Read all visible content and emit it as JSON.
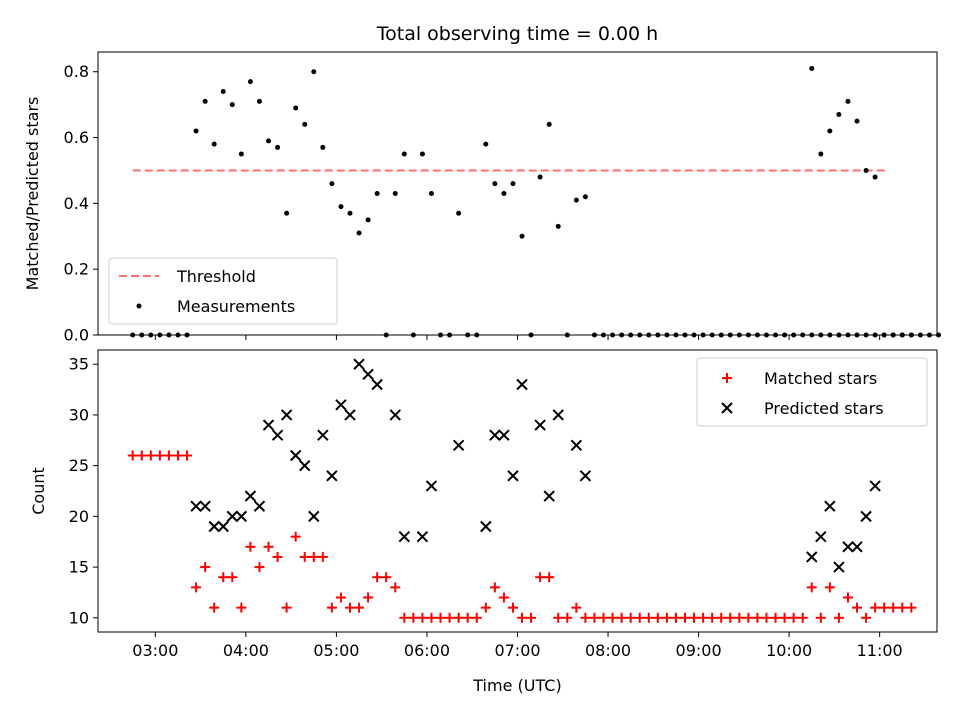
{
  "chart_data": [
    {
      "type": "scatter",
      "title": "Total observing time = 0.00 h",
      "xlabel": "",
      "ylabel": "Matched/Predicted stars",
      "xlim": [
        "02:22",
        "11:38"
      ],
      "ylim": [
        0,
        0.86
      ],
      "yticks": [
        "0.0",
        "0.2",
        "0.4",
        "0.6",
        "0.8"
      ],
      "ytick_values": [
        0,
        0.2,
        0.4,
        0.6,
        0.8
      ],
      "legend": "lower-left",
      "series": [
        {
          "name": "Threshold",
          "style": "dashed-line",
          "color": "#ff7070",
          "x": [
            "02:45",
            "11:05"
          ],
          "y": [
            0.5,
            0.5
          ]
        },
        {
          "name": "Measurements",
          "style": "dot",
          "color": "#000000",
          "points": [
            [
              "02:45",
              0
            ],
            [
              "02:51",
              0
            ],
            [
              "02:57",
              0
            ],
            [
              "03:03",
              0
            ],
            [
              "03:09",
              0
            ],
            [
              "03:15",
              0
            ],
            [
              "03:21",
              0
            ],
            [
              "03:27",
              0.62
            ],
            [
              "03:33",
              0.71
            ],
            [
              "03:39",
              0.58
            ],
            [
              "03:45",
              0.74
            ],
            [
              "03:51",
              0.7
            ],
            [
              "03:57",
              0.55
            ],
            [
              "04:03",
              0.77
            ],
            [
              "04:09",
              0.71
            ],
            [
              "04:15",
              0.59
            ],
            [
              "04:21",
              0.57
            ],
            [
              "04:27",
              0.37
            ],
            [
              "04:33",
              0.69
            ],
            [
              "04:39",
              0.64
            ],
            [
              "04:45",
              0.8
            ],
            [
              "04:51",
              0.57
            ],
            [
              "04:57",
              0.46
            ],
            [
              "05:03",
              0.39
            ],
            [
              "05:09",
              0.37
            ],
            [
              "05:15",
              0.31
            ],
            [
              "05:21",
              0.35
            ],
            [
              "05:27",
              0.43
            ],
            [
              "05:33",
              0.0
            ],
            [
              "05:39",
              0.43
            ],
            [
              "05:45",
              0.55
            ],
            [
              "05:51",
              0.0
            ],
            [
              "05:57",
              0.55
            ],
            [
              "06:03",
              0.43
            ],
            [
              "06:09",
              0.0
            ],
            [
              "06:15",
              0.0
            ],
            [
              "06:21",
              0.37
            ],
            [
              "06:27",
              0.0
            ],
            [
              "06:33",
              0.0
            ],
            [
              "06:39",
              0.58
            ],
            [
              "06:45",
              0.46
            ],
            [
              "06:51",
              0.43
            ],
            [
              "06:57",
              0.46
            ],
            [
              "07:03",
              0.3
            ],
            [
              "07:09",
              0.0
            ],
            [
              "07:15",
              0.48
            ],
            [
              "07:21",
              0.64
            ],
            [
              "07:27",
              0.33
            ],
            [
              "07:33",
              0.0
            ],
            [
              "07:39",
              0.41
            ],
            [
              "07:45",
              0.42
            ],
            [
              "07:51",
              0
            ],
            [
              "07:57",
              0
            ],
            [
              "08:03",
              0
            ],
            [
              "08:09",
              0
            ],
            [
              "08:15",
              0
            ],
            [
              "08:21",
              0
            ],
            [
              "08:27",
              0
            ],
            [
              "08:33",
              0
            ],
            [
              "08:39",
              0
            ],
            [
              "08:45",
              0
            ],
            [
              "08:51",
              0
            ],
            [
              "08:57",
              0
            ],
            [
              "09:03",
              0
            ],
            [
              "09:09",
              0
            ],
            [
              "09:15",
              0
            ],
            [
              "09:21",
              0
            ],
            [
              "09:27",
              0
            ],
            [
              "09:33",
              0
            ],
            [
              "09:39",
              0
            ],
            [
              "09:45",
              0
            ],
            [
              "09:51",
              0
            ],
            [
              "09:57",
              0
            ],
            [
              "10:03",
              0
            ],
            [
              "10:09",
              0
            ],
            [
              "10:15",
              0
            ],
            [
              "10:21",
              0
            ],
            [
              "10:27",
              0
            ],
            [
              "10:33",
              0
            ],
            [
              "10:39",
              0
            ],
            [
              "10:45",
              0
            ],
            [
              "10:51",
              0
            ],
            [
              "10:57",
              0
            ],
            [
              "11:03",
              0
            ],
            [
              "11:09",
              0
            ],
            [
              "11:15",
              0
            ],
            [
              "11:21",
              0
            ],
            [
              "11:27",
              0
            ],
            [
              "11:33",
              0
            ],
            [
              "11:39",
              0
            ],
            [
              "10:15",
              0.81
            ],
            [
              "10:21",
              0.55
            ],
            [
              "10:27",
              0.62
            ],
            [
              "10:33",
              0.67
            ],
            [
              "10:39",
              0.71
            ],
            [
              "10:45",
              0.65
            ],
            [
              "10:51",
              0.5
            ],
            [
              "10:57",
              0.48
            ],
            [
              "11:03",
              0
            ],
            [
              "11:09",
              0
            ],
            [
              "11:15",
              0
            ],
            [
              "11:21",
              0
            ]
          ]
        }
      ]
    },
    {
      "type": "scatter",
      "title": "",
      "xlabel": "Time (UTC)",
      "ylabel": "Count",
      "xlim": [
        "02:22",
        "11:38"
      ],
      "ylim": [
        8.6,
        36.4
      ],
      "yticks": [
        "10",
        "15",
        "20",
        "25",
        "30",
        "35"
      ],
      "ytick_values": [
        10,
        15,
        20,
        25,
        30,
        35
      ],
      "xticks": [
        "03:00",
        "04:00",
        "05:00",
        "06:00",
        "07:00",
        "08:00",
        "09:00",
        "10:00",
        "11:00"
      ],
      "legend": "top-right",
      "series": [
        {
          "name": "Matched stars",
          "marker": "plus",
          "color": "#ff0000",
          "points": [
            [
              "02:45",
              26
            ],
            [
              "02:51",
              26
            ],
            [
              "02:57",
              26
            ],
            [
              "03:03",
              26
            ],
            [
              "03:09",
              26
            ],
            [
              "03:15",
              26
            ],
            [
              "03:21",
              26
            ],
            [
              "03:27",
              13
            ],
            [
              "03:33",
              15
            ],
            [
              "03:39",
              11
            ],
            [
              "03:45",
              14
            ],
            [
              "03:51",
              14
            ],
            [
              "03:57",
              11
            ],
            [
              "04:03",
              17
            ],
            [
              "04:09",
              15
            ],
            [
              "04:15",
              17
            ],
            [
              "04:21",
              16
            ],
            [
              "04:27",
              11
            ],
            [
              "04:33",
              18
            ],
            [
              "04:39",
              16
            ],
            [
              "04:45",
              16
            ],
            [
              "04:51",
              16
            ],
            [
              "04:57",
              11
            ],
            [
              "05:03",
              12
            ],
            [
              "05:09",
              11
            ],
            [
              "05:15",
              11
            ],
            [
              "05:21",
              12
            ],
            [
              "05:27",
              14
            ],
            [
              "05:33",
              14
            ],
            [
              "05:39",
              13
            ],
            [
              "05:45",
              10
            ],
            [
              "05:51",
              10
            ],
            [
              "05:57",
              10
            ],
            [
              "06:03",
              10
            ],
            [
              "06:09",
              10
            ],
            [
              "06:15",
              10
            ],
            [
              "06:21",
              10
            ],
            [
              "06:27",
              10
            ],
            [
              "06:33",
              10
            ],
            [
              "06:39",
              11
            ],
            [
              "06:45",
              13
            ],
            [
              "06:51",
              12
            ],
            [
              "06:57",
              11
            ],
            [
              "07:03",
              10
            ],
            [
              "07:09",
              10
            ],
            [
              "07:15",
              14
            ],
            [
              "07:21",
              14
            ],
            [
              "07:27",
              10
            ],
            [
              "07:33",
              10
            ],
            [
              "07:39",
              11
            ],
            [
              "07:45",
              10
            ],
            [
              "07:51",
              10
            ],
            [
              "07:57",
              10
            ],
            [
              "08:03",
              10
            ],
            [
              "08:09",
              10
            ],
            [
              "08:15",
              10
            ],
            [
              "08:21",
              10
            ],
            [
              "08:27",
              10
            ],
            [
              "08:33",
              10
            ],
            [
              "08:39",
              10
            ],
            [
              "08:45",
              10
            ],
            [
              "08:51",
              10
            ],
            [
              "08:57",
              10
            ],
            [
              "09:03",
              10
            ],
            [
              "09:09",
              10
            ],
            [
              "09:15",
              10
            ],
            [
              "09:21",
              10
            ],
            [
              "09:27",
              10
            ],
            [
              "09:33",
              10
            ],
            [
              "09:39",
              10
            ],
            [
              "09:45",
              10
            ],
            [
              "09:51",
              10
            ],
            [
              "09:57",
              10
            ],
            [
              "10:03",
              10
            ],
            [
              "10:09",
              10
            ],
            [
              "10:15",
              13
            ],
            [
              "10:21",
              10
            ],
            [
              "10:27",
              13
            ],
            [
              "10:33",
              10
            ],
            [
              "10:39",
              12
            ],
            [
              "10:45",
              11
            ],
            [
              "10:51",
              10
            ],
            [
              "10:57",
              11
            ],
            [
              "11:03",
              11
            ],
            [
              "11:09",
              11
            ],
            [
              "11:15",
              11
            ],
            [
              "11:21",
              11
            ]
          ]
        },
        {
          "name": "Predicted stars",
          "marker": "x",
          "color": "#000000",
          "points": [
            [
              "03:27",
              21
            ],
            [
              "03:33",
              21
            ],
            [
              "03:39",
              19
            ],
            [
              "03:45",
              19
            ],
            [
              "03:51",
              20
            ],
            [
              "03:57",
              20
            ],
            [
              "04:03",
              22
            ],
            [
              "04:09",
              21
            ],
            [
              "04:15",
              29
            ],
            [
              "04:21",
              28
            ],
            [
              "04:27",
              30
            ],
            [
              "04:33",
              26
            ],
            [
              "04:39",
              25
            ],
            [
              "04:45",
              20
            ],
            [
              "04:51",
              28
            ],
            [
              "04:57",
              24
            ],
            [
              "05:03",
              31
            ],
            [
              "05:09",
              30
            ],
            [
              "05:15",
              35
            ],
            [
              "05:21",
              34
            ],
            [
              "05:27",
              33
            ],
            [
              "05:39",
              30
            ],
            [
              "05:45",
              18
            ],
            [
              "05:57",
              18
            ],
            [
              "06:03",
              23
            ],
            [
              "06:21",
              27
            ],
            [
              "06:39",
              19
            ],
            [
              "06:45",
              28
            ],
            [
              "06:51",
              28
            ],
            [
              "06:57",
              24
            ],
            [
              "07:03",
              33
            ],
            [
              "07:15",
              29
            ],
            [
              "07:21",
              22
            ],
            [
              "07:27",
              30
            ],
            [
              "07:39",
              27
            ],
            [
              "07:45",
              24
            ],
            [
              "10:15",
              16
            ],
            [
              "10:21",
              18
            ],
            [
              "10:27",
              21
            ],
            [
              "10:33",
              15
            ],
            [
              "10:39",
              17
            ],
            [
              "10:45",
              17
            ],
            [
              "10:51",
              20
            ],
            [
              "10:57",
              23
            ]
          ]
        }
      ]
    }
  ]
}
